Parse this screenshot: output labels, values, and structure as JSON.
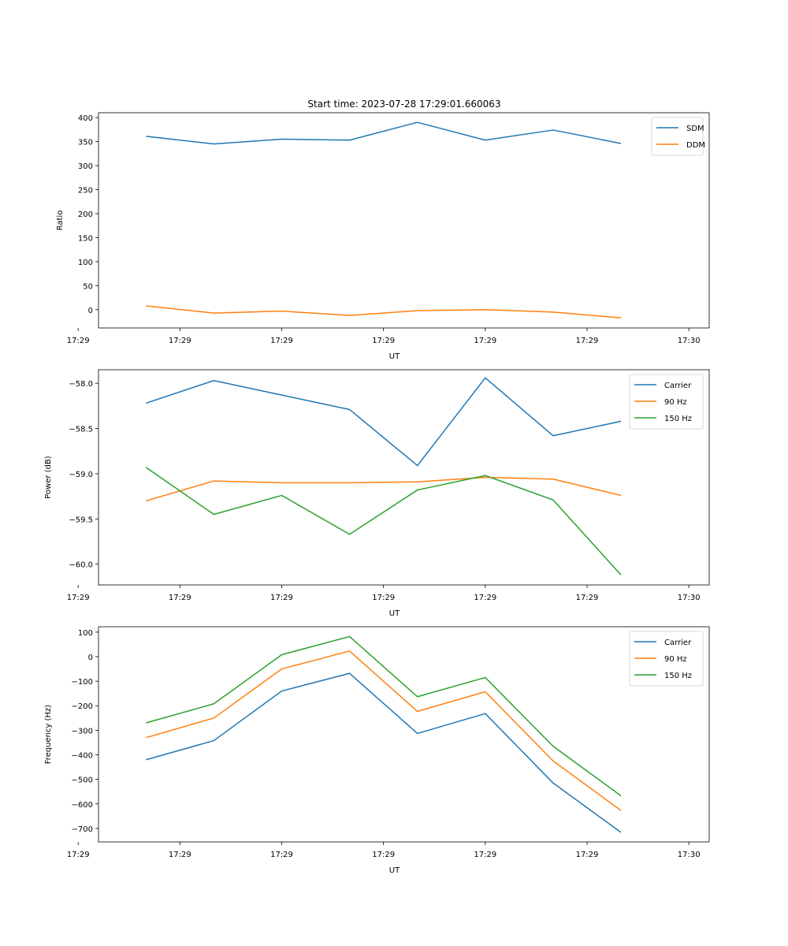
{
  "figure": {
    "title": "Start time: 2023-07-28 17:29:01.660063"
  },
  "chart_data": [
    {
      "type": "line",
      "title": "Start time: 2023-07-28 17:29:01.660063",
      "xlabel": "UT",
      "ylabel": "Ratio",
      "x": [
        1,
        2,
        3,
        4,
        5,
        6,
        7,
        8
      ],
      "xlim": [
        0.3,
        9.3
      ],
      "xticks": [
        0.0,
        1.5,
        3.0,
        4.5,
        6.0,
        7.5,
        9.0
      ],
      "xticklabels": [
        "17:29",
        "17:29",
        "17:29",
        "17:29",
        "17:29",
        "17:29",
        "17:30"
      ],
      "ylim": [
        -38,
        410
      ],
      "yticks": [
        0,
        50,
        100,
        150,
        200,
        250,
        300,
        350,
        400
      ],
      "yticklabels": [
        "0",
        "50",
        "100",
        "150",
        "200",
        "250",
        "300",
        "350",
        "400"
      ],
      "legend": "top-right",
      "series": [
        {
          "name": "SDM",
          "color": "#1f77b4",
          "values": [
            361,
            345,
            355,
            353,
            390,
            353,
            374,
            346
          ]
        },
        {
          "name": "DDM",
          "color": "#ff7f0e",
          "values": [
            8,
            -7,
            -3,
            -12,
            -2,
            0,
            -5,
            -17
          ]
        }
      ]
    },
    {
      "type": "line",
      "title": "",
      "xlabel": "UT",
      "ylabel": "Power (dB)",
      "x": [
        1,
        2,
        3,
        4,
        5,
        6,
        7,
        8
      ],
      "xlim": [
        0.3,
        9.3
      ],
      "xticks": [
        0.0,
        1.5,
        3.0,
        4.5,
        6.0,
        7.5,
        9.0
      ],
      "xticklabels": [
        "17:29",
        "17:29",
        "17:29",
        "17:29",
        "17:29",
        "17:29",
        "17:30"
      ],
      "ylim": [
        -60.23,
        -57.85
      ],
      "yticks": [
        -60.0,
        -59.5,
        -59.0,
        -58.5,
        -58.0
      ],
      "yticklabels": [
        "−60.0",
        "−59.5",
        "−59.0",
        "−58.5",
        "−58.0"
      ],
      "legend": "top-right",
      "series": [
        {
          "name": "Carrier",
          "color": "#1f77b4",
          "values": [
            -58.22,
            -57.97,
            -58.13,
            -58.29,
            -58.91,
            -57.94,
            -58.58,
            -58.42
          ]
        },
        {
          "name": "90 Hz",
          "color": "#ff7f0e",
          "values": [
            -59.3,
            -59.08,
            -59.1,
            -59.1,
            -59.09,
            -59.04,
            -59.06,
            -59.24
          ]
        },
        {
          "name": "150 Hz",
          "color": "#2ca02c",
          "values": [
            -58.93,
            -59.45,
            -59.24,
            -59.67,
            -59.18,
            -59.02,
            -59.29,
            -60.12
          ]
        }
      ]
    },
    {
      "type": "line",
      "title": "",
      "xlabel": "UT",
      "ylabel": "Frequency (Hz)",
      "x": [
        1,
        2,
        3,
        4,
        5,
        6,
        7,
        8
      ],
      "xlim": [
        0.3,
        9.3
      ],
      "xticks": [
        0.0,
        1.5,
        3.0,
        4.5,
        6.0,
        7.5,
        9.0
      ],
      "xticklabels": [
        "17:29",
        "17:29",
        "17:29",
        "17:29",
        "17:29",
        "17:29",
        "17:30"
      ],
      "ylim": [
        -755,
        122
      ],
      "yticks": [
        -700,
        -600,
        -500,
        -400,
        -300,
        -200,
        -100,
        0,
        100
      ],
      "yticklabels": [
        "−700",
        "−600",
        "−500",
        "−400",
        "−300",
        "−200",
        "−100",
        "0",
        "100"
      ],
      "legend": "top-right",
      "series": [
        {
          "name": "Carrier",
          "color": "#1f77b4",
          "values": [
            -420,
            -342,
            -140,
            -68,
            -313,
            -232,
            -515,
            -716
          ]
        },
        {
          "name": "90 Hz",
          "color": "#ff7f0e",
          "values": [
            -330,
            -250,
            -50,
            23,
            -223,
            -143,
            -425,
            -627
          ]
        },
        {
          "name": "150 Hz",
          "color": "#2ca02c",
          "values": [
            -270,
            -192,
            8,
            82,
            -163,
            -85,
            -365,
            -567
          ]
        }
      ]
    }
  ]
}
